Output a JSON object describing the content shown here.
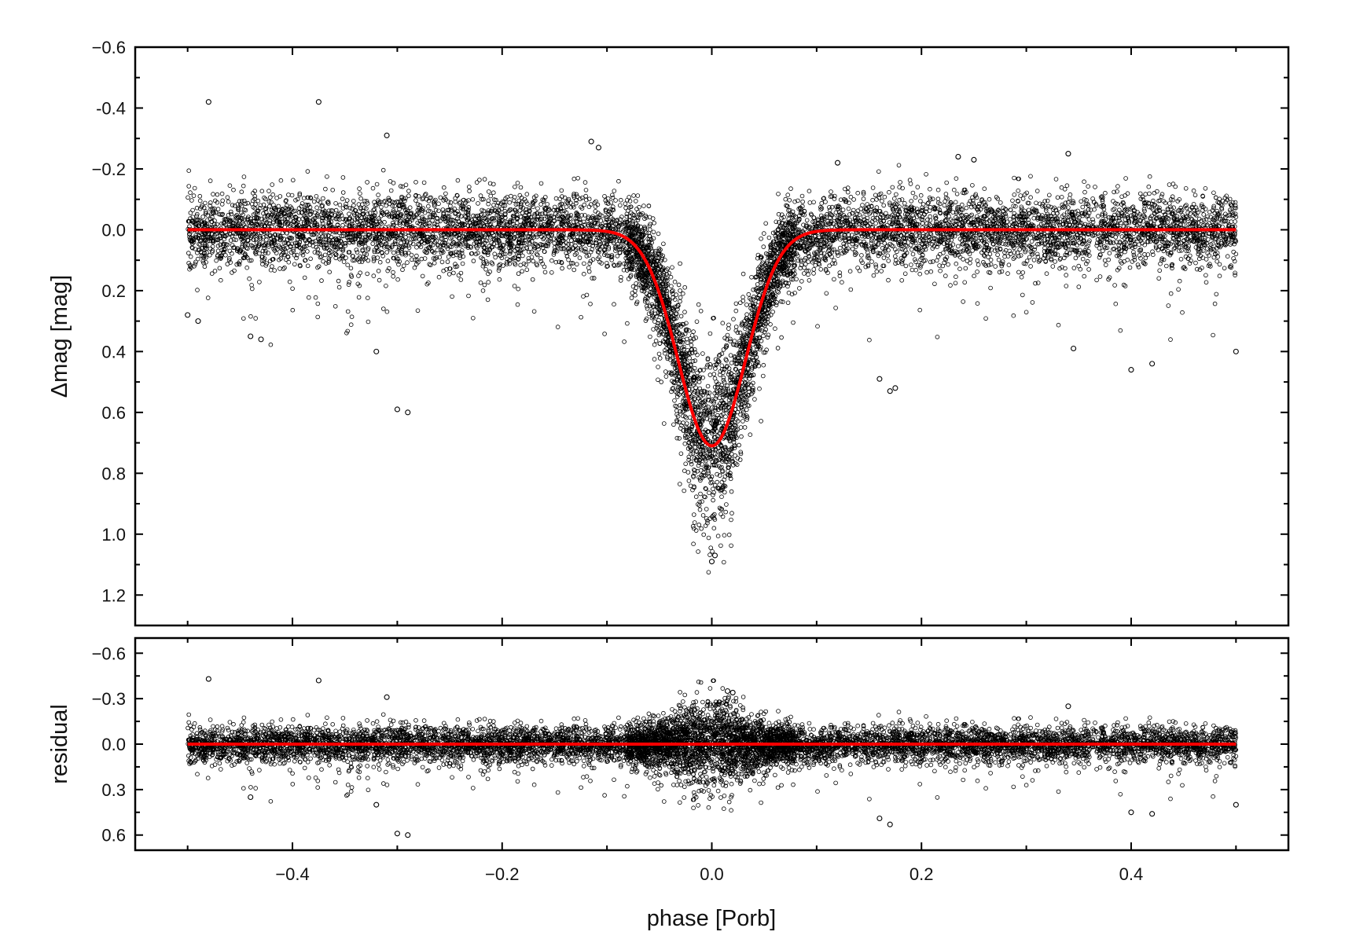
{
  "chart_data": [
    {
      "type": "scatter",
      "panel": "light-curve",
      "title": "",
      "xlabel": "",
      "ylabel": "Δmag [mag]",
      "xlim": [
        -0.55,
        0.55
      ],
      "ylim": [
        -0.6,
        1.3
      ],
      "y_inverted": true,
      "yticks": [
        -0.6,
        -0.4,
        -0.2,
        0.0,
        0.2,
        0.4,
        0.6,
        0.8,
        1.0,
        1.2
      ],
      "ytick_labels": [
        "−0.6",
        "-0.4",
        "−0.2",
        "0.0",
        "0.2",
        "0.4",
        "0.6",
        "0.8",
        "1.0",
        "1.2"
      ],
      "grid": false,
      "series": [
        {
          "kind": "scatter",
          "marker": "open-circle",
          "color": "#000000",
          "x_range": [
            -0.5,
            0.5
          ],
          "baseline": 0.0,
          "eclipse_depth": 0.71,
          "eclipse_center": 0.0,
          "scatter_sigma": 0.06,
          "points": [
            [
              -0.48,
              -0.42
            ],
            [
              -0.375,
              -0.42
            ],
            [
              -0.31,
              -0.31
            ],
            [
              -0.3,
              0.59
            ],
            [
              -0.29,
              0.6
            ],
            [
              -0.32,
              0.4
            ],
            [
              -0.115,
              -0.29
            ],
            [
              -0.108,
              -0.27
            ],
            [
              -0.44,
              0.35
            ],
            [
              -0.43,
              0.36
            ],
            [
              0.0,
              1.09
            ],
            [
              0.003,
              1.07
            ],
            [
              0.34,
              -0.25
            ],
            [
              0.16,
              0.49
            ],
            [
              0.17,
              0.53
            ],
            [
              0.175,
              0.52
            ],
            [
              0.4,
              0.46
            ],
            [
              0.42,
              0.44
            ],
            [
              0.345,
              0.39
            ],
            [
              0.5,
              0.4
            ],
            [
              -0.5,
              0.28
            ],
            [
              -0.49,
              0.3
            ],
            [
              0.235,
              -0.24
            ],
            [
              0.25,
              -0.23
            ],
            [
              0.12,
              -0.22
            ]
          ]
        },
        {
          "kind": "line",
          "color": "#ff0000",
          "model": "eclipse fit",
          "x_range": [
            -0.5,
            0.5
          ],
          "baseline": 0.0,
          "depth": 0.71,
          "width": 0.032
        }
      ]
    },
    {
      "type": "scatter",
      "panel": "residuals",
      "title": "",
      "xlabel": "phase [Porb]",
      "ylabel": "residual",
      "xlim": [
        -0.55,
        0.55
      ],
      "ylim": [
        -0.7,
        0.7
      ],
      "y_inverted": true,
      "yticks": [
        -0.6,
        -0.3,
        0.0,
        0.3,
        0.6
      ],
      "ytick_labels": [
        "−0.6",
        "−0.3",
        "0.0",
        "0.3",
        "0.6"
      ],
      "xticks": [
        -0.4,
        -0.2,
        0.0,
        0.2,
        0.4
      ],
      "xtick_labels": [
        "−0.4",
        "−0.2",
        "0.0",
        "0.2",
        "0.4"
      ],
      "grid": false,
      "series": [
        {
          "kind": "scatter",
          "marker": "open-circle",
          "color": "#000000",
          "x_range": [
            -0.5,
            0.5
          ],
          "scatter_sigma": 0.06,
          "points": [
            [
              -0.48,
              -0.43
            ],
            [
              -0.375,
              -0.42
            ],
            [
              -0.31,
              -0.31
            ],
            [
              -0.3,
              0.59
            ],
            [
              -0.29,
              0.6
            ],
            [
              0.015,
              -0.35
            ],
            [
              0.02,
              -0.34
            ],
            [
              0.16,
              0.49
            ],
            [
              0.17,
              0.53
            ],
            [
              0.4,
              0.45
            ],
            [
              0.42,
              0.46
            ],
            [
              -0.32,
              0.4
            ],
            [
              0.34,
              -0.25
            ],
            [
              0.5,
              0.4
            ],
            [
              -0.44,
              0.35
            ]
          ]
        },
        {
          "kind": "line",
          "color": "#ff0000",
          "model": "zero",
          "x_range": [
            -0.5,
            0.5
          ],
          "value": 0.0
        }
      ]
    }
  ]
}
